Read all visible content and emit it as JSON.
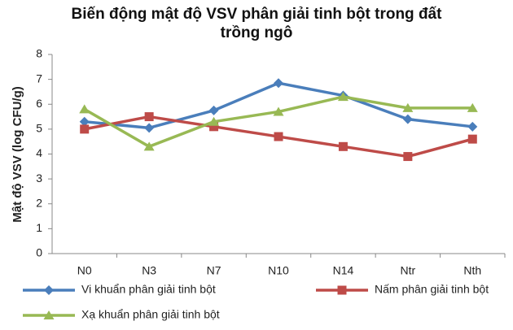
{
  "chart_data": {
    "type": "line",
    "title": "Biến động mật độ VSV phân giải tinh bột trong đất trồng ngô",
    "y_label": "Mật độ VSV (log CFU/g)",
    "categories": [
      "N0",
      "N3",
      "N7",
      "N10",
      "N14",
      "Ntr",
      "Nth"
    ],
    "series": [
      {
        "name": "Vi khuẩn phân giải tinh bột",
        "color": "#4a7ebb",
        "marker": "diamond",
        "values": [
          5.3,
          5.05,
          5.75,
          6.85,
          6.35,
          5.4,
          5.1
        ]
      },
      {
        "name": "Nấm phân giải tinh bột",
        "color": "#be4b48",
        "marker": "square",
        "values": [
          5.0,
          5.5,
          5.1,
          4.7,
          4.3,
          3.9,
          4.6
        ]
      },
      {
        "name": "Xạ khuẩn phân giải tinh bột",
        "color": "#98b954",
        "marker": "triangle",
        "values": [
          5.8,
          4.3,
          5.3,
          5.7,
          6.3,
          5.85,
          5.85
        ]
      }
    ],
    "ylim": [
      0,
      8
    ],
    "yticks": [
      0,
      1,
      2,
      3,
      4,
      5,
      6,
      7,
      8
    ],
    "grid": false,
    "legend": "bottom"
  }
}
